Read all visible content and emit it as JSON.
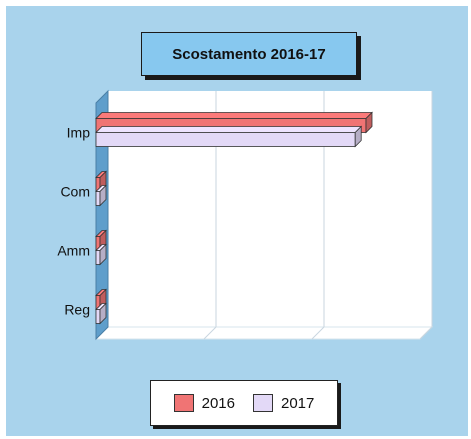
{
  "chart_data": {
    "type": "bar",
    "orientation": "horizontal",
    "title": "Scostamento 2016-17",
    "categories": [
      "Imp",
      "Com",
      "Amm",
      "Reg"
    ],
    "series": [
      {
        "name": "2016",
        "values": [
          100,
          0,
          0,
          0
        ],
        "color": "#f07474"
      },
      {
        "name": "2017",
        "values": [
          96,
          0,
          0,
          0
        ],
        "color": "#e3d9f7"
      }
    ],
    "xlim": [
      0,
      120
    ],
    "legend_position": "bottom",
    "grid": true,
    "style": "3d"
  }
}
